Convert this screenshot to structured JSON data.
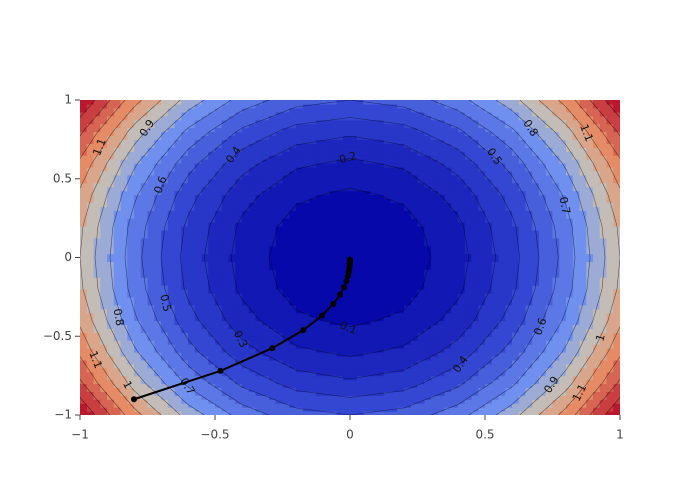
{
  "chart_data": {
    "type": "contour",
    "x": [
      -1,
      -0.8,
      -0.6,
      -0.4,
      -0.2,
      0,
      0.2,
      0.4,
      0.6,
      0.8,
      1
    ],
    "y": [
      -1,
      -0.8,
      -0.6,
      -0.4,
      -0.2,
      0,
      0.2,
      0.4,
      0.6,
      0.8,
      1
    ],
    "z": [
      [
        1.5,
        1.14,
        0.86,
        0.66,
        0.54,
        0.5,
        0.54,
        0.66,
        0.86,
        1.14,
        1.5
      ],
      [
        1.32,
        0.96,
        0.68,
        0.48,
        0.36,
        0.32,
        0.36,
        0.48,
        0.68,
        0.96,
        1.32
      ],
      [
        1.18,
        0.82,
        0.54,
        0.34,
        0.22,
        0.18,
        0.22,
        0.34,
        0.54,
        0.82,
        1.18
      ],
      [
        1.08,
        0.72,
        0.44,
        0.24,
        0.12,
        0.08,
        0.12,
        0.24,
        0.44,
        0.72,
        1.08
      ],
      [
        1.02,
        0.66,
        0.38,
        0.18,
        0.06,
        0.02,
        0.06,
        0.18,
        0.38,
        0.66,
        1.02
      ],
      [
        1,
        0.64,
        0.36,
        0.16,
        0.04,
        0,
        0.04,
        0.16,
        0.36,
        0.64,
        1
      ],
      [
        1.02,
        0.66,
        0.38,
        0.18,
        0.06,
        0.02,
        0.06,
        0.18,
        0.38,
        0.66,
        1.02
      ],
      [
        1.08,
        0.72,
        0.44,
        0.24,
        0.12,
        0.08,
        0.12,
        0.24,
        0.44,
        0.72,
        1.08
      ],
      [
        1.18,
        0.82,
        0.54,
        0.34,
        0.22,
        0.18,
        0.22,
        0.34,
        0.54,
        0.82,
        1.18
      ],
      [
        1.32,
        0.96,
        0.68,
        0.48,
        0.36,
        0.32,
        0.36,
        0.48,
        0.68,
        0.96,
        1.32
      ],
      [
        1.5,
        1.14,
        0.86,
        0.66,
        0.54,
        0.5,
        0.54,
        0.66,
        0.86,
        1.14,
        1.5
      ]
    ],
    "zlim": [
      0,
      1.5
    ],
    "contours": {
      "start": 0.1,
      "end": 1.4,
      "size": 0.1
    },
    "colorscale": [
      [
        0,
        "#0000a4"
      ],
      [
        0.3,
        "#3447d2"
      ],
      [
        0.5,
        "#7090f0"
      ],
      [
        0.62,
        "#c0c0c0"
      ],
      [
        0.75,
        "#e8956a"
      ],
      [
        1,
        "#b40426"
      ]
    ],
    "contour_labels": [
      {
        "level": 1.1,
        "x": -0.926,
        "y": 0.7
      },
      {
        "level": 0.9,
        "x": -0.75,
        "y": 0.82
      },
      {
        "level": 0.6,
        "x": -0.7,
        "y": 0.46
      },
      {
        "level": 0.4,
        "x": -0.43,
        "y": 0.65
      },
      {
        "level": 0.2,
        "x": -0.007,
        "y": 0.63
      },
      {
        "level": 0.8,
        "x": 0.667,
        "y": 0.82
      },
      {
        "level": 1.1,
        "x": 0.874,
        "y": 0.79
      },
      {
        "level": 0.5,
        "x": 0.533,
        "y": 0.64
      },
      {
        "level": 0.7,
        "x": 0.793,
        "y": 0.33
      },
      {
        "level": 0.5,
        "x": -0.685,
        "y": -0.29
      },
      {
        "level": 0.8,
        "x": -0.859,
        "y": -0.38
      },
      {
        "level": 0.3,
        "x": -0.407,
        "y": -0.52
      },
      {
        "level": 0.1,
        "x": -0.007,
        "y": -0.45
      },
      {
        "level": 0.6,
        "x": 0.707,
        "y": -0.44
      },
      {
        "level": 1,
        "x": 0.93,
        "y": -0.51
      },
      {
        "level": 0.4,
        "x": 0.411,
        "y": -0.68
      },
      {
        "level": 1.1,
        "x": -0.944,
        "y": -0.65
      },
      {
        "level": 1,
        "x": -0.826,
        "y": -0.81
      },
      {
        "level": 0.7,
        "x": -0.604,
        "y": -0.82
      },
      {
        "level": 0.9,
        "x": 0.748,
        "y": -0.81
      },
      {
        "level": 1.1,
        "x": 0.852,
        "y": -0.86
      }
    ],
    "path": {
      "color": "#000000",
      "x": [
        -0.8,
        -0.48,
        -0.288,
        -0.173,
        -0.104,
        -0.062,
        -0.037,
        -0.022,
        -0.013,
        -0.008,
        -0.005,
        -0.003,
        -0.002,
        -0.001,
        -0.001,
        0,
        0,
        0,
        0,
        0
      ],
      "y": [
        -0.9,
        -0.72,
        -0.576,
        -0.461,
        -0.369,
        -0.295,
        -0.236,
        -0.189,
        -0.151,
        -0.121,
        -0.097,
        -0.077,
        -0.062,
        -0.05,
        -0.04,
        -0.032,
        -0.025,
        -0.02,
        -0.016,
        -0.013
      ]
    },
    "xlim": [
      -1,
      1
    ],
    "ylim": [
      -1,
      1
    ],
    "xticks": [
      {
        "value": -1,
        "label": "−1"
      },
      {
        "value": -0.5,
        "label": "−0.5"
      },
      0,
      0.5,
      1
    ],
    "yticks": [
      {
        "value": -1,
        "label": "−1"
      },
      {
        "value": -0.5,
        "label": "−0.5"
      },
      0,
      0.5,
      1
    ]
  }
}
